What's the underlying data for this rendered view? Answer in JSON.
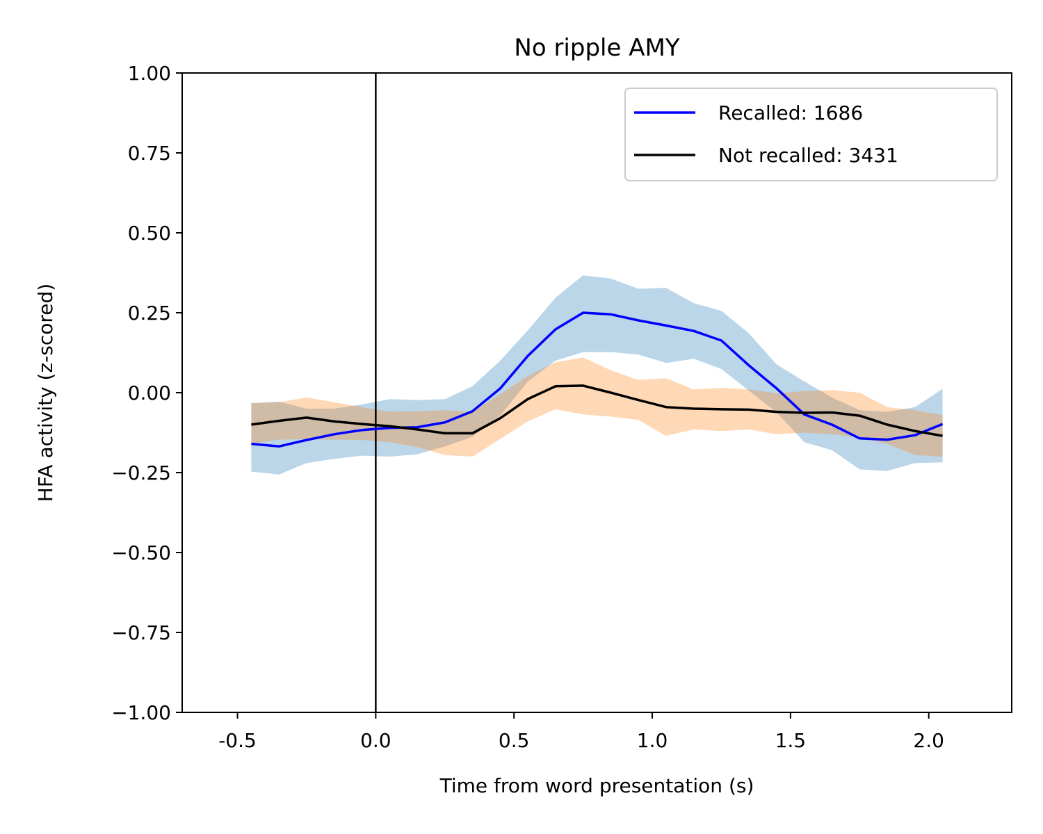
{
  "chart_data": {
    "type": "line",
    "title": "No ripple AMY",
    "xlabel": "Time from word presentation (s)",
    "ylabel": "HFA activity (z-scored)",
    "xlim": [
      -0.7,
      2.3
    ],
    "ylim": [
      -1.0,
      1.0
    ],
    "xticks": [
      -0.5,
      0.0,
      0.5,
      1.0,
      1.5,
      2.0
    ],
    "xtick_labels": [
      "-0.5",
      "0.0",
      "0.5",
      "1.0",
      "1.5",
      "2.0"
    ],
    "yticks": [
      1.0,
      0.75,
      0.5,
      0.25,
      0.0,
      -0.25,
      -0.5,
      -0.75,
      -1.0
    ],
    "ytick_labels": [
      "1.00",
      "0.75",
      "0.50",
      "0.25",
      "0.00",
      "−0.25",
      "−0.50",
      "−0.75",
      "−1.00"
    ],
    "vline_x": 0.0,
    "legend_position": "upper right",
    "grid": false,
    "x": [
      -0.45,
      -0.35,
      -0.25,
      -0.15,
      -0.05,
      0.05,
      0.15,
      0.25,
      0.35,
      0.45,
      0.55,
      0.65,
      0.75,
      0.85,
      0.95,
      1.05,
      1.15,
      1.25,
      1.35,
      1.45,
      1.55,
      1.65,
      1.75,
      1.85,
      1.95,
      2.05
    ],
    "series": [
      {
        "name": "Recalled: 1686",
        "color": "#0000ff",
        "band_color": "#1f77b4",
        "values": [
          -0.16,
          -0.168,
          -0.148,
          -0.13,
          -0.117,
          -0.11,
          -0.108,
          -0.093,
          -0.058,
          0.013,
          0.115,
          0.198,
          0.25,
          0.245,
          0.226,
          0.21,
          0.193,
          0.163,
          0.085,
          0.013,
          -0.068,
          -0.1,
          -0.143,
          -0.147,
          -0.133,
          -0.098
        ],
        "upper": [
          -0.033,
          -0.028,
          -0.05,
          -0.05,
          -0.037,
          -0.02,
          -0.023,
          -0.02,
          0.02,
          0.1,
          0.195,
          0.297,
          0.367,
          0.357,
          0.325,
          0.328,
          0.28,
          0.256,
          0.185,
          0.088,
          0.035,
          -0.015,
          -0.055,
          -0.06,
          -0.045,
          0.012
        ],
        "lower": [
          -0.247,
          -0.256,
          -0.22,
          -0.207,
          -0.197,
          -0.2,
          -0.193,
          -0.168,
          -0.138,
          -0.072,
          0.035,
          0.1,
          0.127,
          0.127,
          0.119,
          0.093,
          0.106,
          0.074,
          0.006,
          -0.062,
          -0.155,
          -0.18,
          -0.24,
          -0.245,
          -0.22,
          -0.218
        ]
      },
      {
        "name": "Not recalled: 3431",
        "color": "#000000",
        "band_color": "#ff7f0e",
        "values": [
          -0.1,
          -0.088,
          -0.078,
          -0.09,
          -0.098,
          -0.105,
          -0.115,
          -0.127,
          -0.127,
          -0.08,
          -0.02,
          0.02,
          0.022,
          0.0,
          -0.023,
          -0.045,
          -0.05,
          -0.052,
          -0.053,
          -0.06,
          -0.063,
          -0.062,
          -0.072,
          -0.1,
          -0.12,
          -0.135
        ],
        "upper": [
          -0.032,
          -0.03,
          -0.015,
          -0.03,
          -0.045,
          -0.06,
          -0.058,
          -0.055,
          -0.06,
          -0.005,
          0.052,
          0.095,
          0.11,
          0.07,
          0.04,
          0.045,
          0.01,
          0.015,
          0.01,
          -0.002,
          0.005,
          0.008,
          0.0,
          -0.045,
          -0.055,
          -0.07
        ],
        "lower": [
          -0.16,
          -0.147,
          -0.145,
          -0.147,
          -0.148,
          -0.155,
          -0.17,
          -0.195,
          -0.2,
          -0.145,
          -0.09,
          -0.052,
          -0.068,
          -0.075,
          -0.085,
          -0.135,
          -0.115,
          -0.12,
          -0.115,
          -0.13,
          -0.125,
          -0.13,
          -0.14,
          -0.16,
          -0.195,
          -0.2
        ]
      }
    ]
  }
}
